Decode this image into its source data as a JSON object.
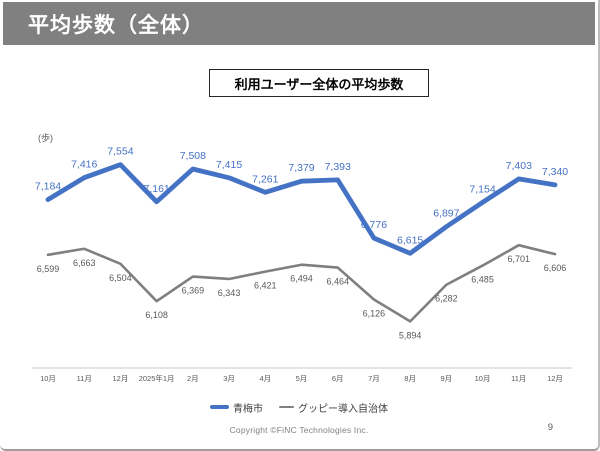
{
  "slide": {
    "title": "平均歩数（全体）",
    "subtitle": "利用ユーザー全体の平均歩数",
    "footer": {
      "copyright": "Copyright ©FiNC Technologies Inc.",
      "page_number": "9"
    }
  },
  "colors": {
    "header_bg": "#808080",
    "title_text": "#ffffff",
    "accent_blue": "#4472C4",
    "line_gray": "#7F7F7F",
    "label_gray": "#595959",
    "axis_line": "#C9C9C9",
    "legend_text": "#404040"
  },
  "chart_data": {
    "type": "line",
    "title": "利用ユーザー全体の平均歩数",
    "xlabel": "",
    "ylabel": "(歩)",
    "ylim": [
      5400,
      7900
    ],
    "grid": false,
    "legend_position": "bottom",
    "categories": [
      "10月",
      "11月",
      "12月",
      "2025年1月",
      "2月",
      "3月",
      "4月",
      "5月",
      "6月",
      "7月",
      "8月",
      "9月",
      "10月",
      "11月",
      "12月"
    ],
    "series": [
      {
        "name": "青梅市",
        "color": "#4472C4",
        "stroke_width": 4.8,
        "label_position": "above",
        "label_color": "#4472C4",
        "label_font_size": 10.5,
        "values": [
          7184,
          7416,
          7554,
          7161,
          7508,
          7415,
          7261,
          7379,
          7393,
          6776,
          6615,
          6897,
          7154,
          7403,
          7340
        ]
      },
      {
        "name": "グッピー導入自治体",
        "color": "#7F7F7F",
        "stroke_width": 2.6,
        "label_position": "below",
        "label_color": "#595959",
        "label_font_size": 9,
        "values": [
          6599,
          6663,
          6504,
          6108,
          6369,
          6343,
          6421,
          6494,
          6464,
          6126,
          5894,
          6282,
          6485,
          6701,
          6606
        ]
      }
    ]
  }
}
